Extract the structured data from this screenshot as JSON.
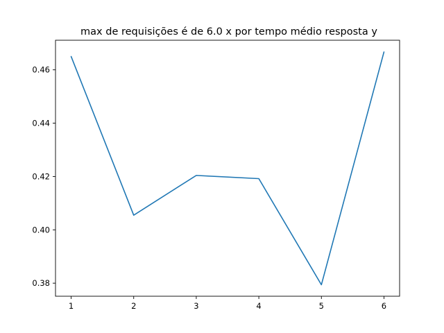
{
  "chart_data": {
    "type": "line",
    "title": "max de requisições é de 6.0 x por tempo médio resposta y",
    "xlabel": "",
    "ylabel": "",
    "x": [
      1,
      2,
      3,
      4,
      5,
      6
    ],
    "series": [
      {
        "values": [
          0.465,
          0.4055,
          0.4204,
          0.4192,
          0.3794,
          0.4667
        ],
        "color": "#1f77b4"
      }
    ],
    "xticks": [
      1,
      2,
      3,
      4,
      5,
      6
    ],
    "yticks": [
      0.38,
      0.4,
      0.42,
      0.44,
      0.46
    ],
    "ytick_labels": [
      "0.38",
      "0.40",
      "0.42",
      "0.44",
      "0.46"
    ],
    "xlim": [
      0.75,
      6.25
    ],
    "ylim": [
      0.3751,
      0.4711
    ],
    "grid": false,
    "legend": "none"
  }
}
